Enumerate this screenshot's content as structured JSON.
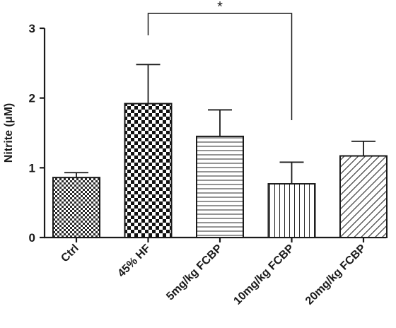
{
  "chart_data": {
    "type": "bar",
    "title": "",
    "xlabel": "",
    "ylabel": "Nitrite (μM)",
    "ylim": [
      0,
      3
    ],
    "yticks": [
      "0",
      "1",
      "2",
      "3"
    ],
    "grid": false,
    "categories": [
      "Ctrl",
      "45% HF",
      "5mg/kg FCBP",
      "10mg/kg FCBP",
      "20mg/kg FCBP"
    ],
    "values": [
      0.86,
      1.92,
      1.45,
      0.77,
      1.17
    ],
    "errors": [
      0.07,
      0.56,
      0.38,
      0.31,
      0.21
    ],
    "patterns": [
      "fine-checker",
      "coarse-checker",
      "horizontal-lines",
      "vertical-lines",
      "diagonal-lines"
    ],
    "significance": [
      {
        "from": 1,
        "to": 3,
        "label": "*"
      }
    ]
  }
}
